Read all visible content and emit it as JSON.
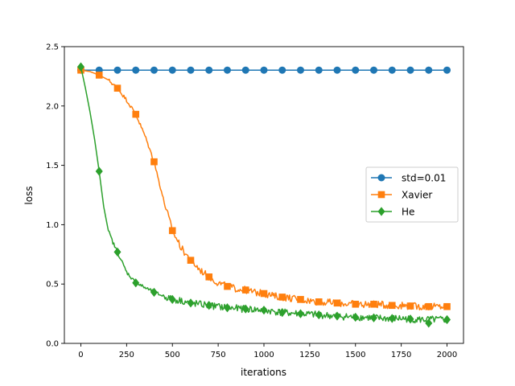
{
  "chart_data": {
    "type": "line",
    "title": "",
    "xlabel": "iterations",
    "ylabel": "loss",
    "xlim": [
      -90,
      2090
    ],
    "ylim": [
      0.0,
      2.5
    ],
    "xticks": [
      0,
      250,
      500,
      750,
      1000,
      1250,
      1500,
      1750,
      2000
    ],
    "yticks": [
      0.0,
      0.5,
      1.0,
      1.5,
      2.0,
      2.5
    ],
    "grid": false,
    "legend_position": "center-right",
    "marker_every": 100,
    "series": [
      {
        "name": "std=0.01",
        "color": "#1f77b4",
        "marker": "circle",
        "points": [
          [
            0,
            2.302
          ],
          [
            2000,
            2.302
          ]
        ]
      },
      {
        "name": "Xavier",
        "color": "#ff7f0e",
        "marker": "square",
        "points": [
          [
            0,
            2.302
          ],
          [
            50,
            2.29
          ],
          [
            100,
            2.26
          ],
          [
            150,
            2.22
          ],
          [
            200,
            2.15
          ],
          [
            250,
            2.05
          ],
          [
            300,
            1.93
          ],
          [
            350,
            1.75
          ],
          [
            400,
            1.53
          ],
          [
            450,
            1.22
          ],
          [
            500,
            0.95
          ],
          [
            550,
            0.8
          ],
          [
            600,
            0.7
          ],
          [
            650,
            0.62
          ],
          [
            700,
            0.56
          ],
          [
            750,
            0.51
          ],
          [
            800,
            0.48
          ],
          [
            850,
            0.46
          ],
          [
            900,
            0.45
          ],
          [
            950,
            0.43
          ],
          [
            1000,
            0.42
          ],
          [
            1050,
            0.4
          ],
          [
            1100,
            0.39
          ],
          [
            1150,
            0.38
          ],
          [
            1200,
            0.37
          ],
          [
            1250,
            0.36
          ],
          [
            1300,
            0.35
          ],
          [
            1350,
            0.345
          ],
          [
            1400,
            0.34
          ],
          [
            1450,
            0.335
          ],
          [
            1500,
            0.33
          ],
          [
            1550,
            0.33
          ],
          [
            1600,
            0.33
          ],
          [
            1650,
            0.325
          ],
          [
            1700,
            0.32
          ],
          [
            1750,
            0.32
          ],
          [
            1800,
            0.315
          ],
          [
            1850,
            0.31
          ],
          [
            1900,
            0.31
          ],
          [
            1950,
            0.31
          ],
          [
            2000,
            0.31
          ]
        ]
      },
      {
        "name": "He",
        "color": "#2ca02c",
        "marker": "diamond",
        "points": [
          [
            0,
            2.33
          ],
          [
            25,
            2.15
          ],
          [
            50,
            1.95
          ],
          [
            75,
            1.72
          ],
          [
            100,
            1.45
          ],
          [
            125,
            1.15
          ],
          [
            150,
            0.95
          ],
          [
            175,
            0.85
          ],
          [
            200,
            0.77
          ],
          [
            250,
            0.6
          ],
          [
            300,
            0.51
          ],
          [
            350,
            0.47
          ],
          [
            400,
            0.43
          ],
          [
            450,
            0.4
          ],
          [
            500,
            0.37
          ],
          [
            550,
            0.36
          ],
          [
            600,
            0.34
          ],
          [
            650,
            0.33
          ],
          [
            700,
            0.32
          ],
          [
            750,
            0.31
          ],
          [
            800,
            0.3
          ],
          [
            850,
            0.295
          ],
          [
            900,
            0.29
          ],
          [
            950,
            0.285
          ],
          [
            1000,
            0.28
          ],
          [
            1050,
            0.27
          ],
          [
            1100,
            0.26
          ],
          [
            1150,
            0.255
          ],
          [
            1200,
            0.25
          ],
          [
            1250,
            0.245
          ],
          [
            1300,
            0.24
          ],
          [
            1350,
            0.235
          ],
          [
            1400,
            0.23
          ],
          [
            1450,
            0.225
          ],
          [
            1500,
            0.22
          ],
          [
            1550,
            0.22
          ],
          [
            1600,
            0.215
          ],
          [
            1650,
            0.21
          ],
          [
            1700,
            0.21
          ],
          [
            1750,
            0.21
          ],
          [
            1800,
            0.205
          ],
          [
            1850,
            0.2
          ],
          [
            1900,
            0.2
          ],
          [
            1950,
            0.2
          ],
          [
            2000,
            0.2
          ]
        ],
        "marker_overrides": [
          [
            1900,
            0.17
          ]
        ]
      }
    ]
  }
}
